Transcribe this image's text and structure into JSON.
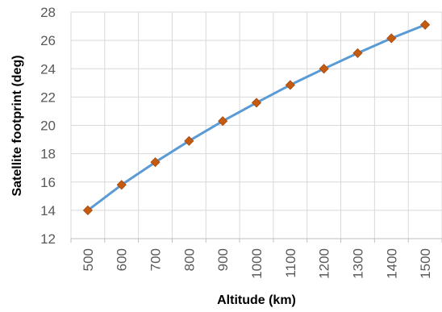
{
  "chart_data": {
    "type": "line",
    "title": "",
    "xlabel": "Altitude (km)",
    "ylabel": "Satellite footprint (deg)",
    "x": [
      500,
      600,
      700,
      800,
      900,
      1000,
      1100,
      1200,
      1300,
      1400,
      1500
    ],
    "x_tick_labels": [
      "500",
      "600",
      "700",
      "800",
      "900",
      "1000",
      "1100",
      "1200",
      "1300",
      "1400",
      "1500"
    ],
    "ylim": [
      12,
      28
    ],
    "y_ticks": [
      12,
      14,
      16,
      18,
      20,
      22,
      24,
      26,
      28
    ],
    "y_tick_labels": [
      "12",
      "14",
      "16",
      "18",
      "20",
      "22",
      "24",
      "26",
      "28"
    ],
    "grid": true,
    "legend": "none",
    "series": [
      {
        "values": [
          14.0,
          15.8,
          17.4,
          18.9,
          20.3,
          21.6,
          22.85,
          24.0,
          25.1,
          26.15,
          27.1
        ],
        "line_color": "#5B9BD5",
        "marker": "diamond",
        "marker_color": "#C55A11"
      }
    ]
  }
}
